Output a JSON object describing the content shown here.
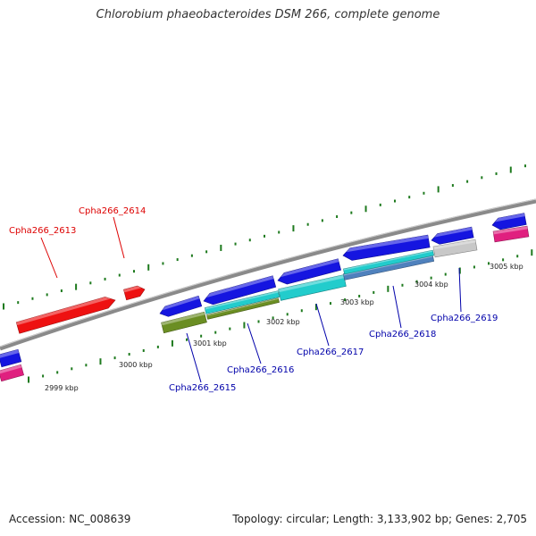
{
  "title": "Chlorobium phaeobacteroides DSM 266, complete genome",
  "footer": {
    "accession": "Accession: NC_008639",
    "info": "Topology: circular; Length: 3,133,902 bp; Genes: 2,705"
  },
  "colors": {
    "backbone": "#8a8a8a",
    "ticks": "#1e7a1e",
    "gene_red": "#ee1111",
    "gene_blue": "#1515e0",
    "cyan": "#22cccc",
    "olive": "#6b8e23",
    "steel": "#4f81bd",
    "gray": "#c8c8c8",
    "magenta": "#e0207f",
    "label_red": "#dd0000",
    "label_blue": "#0000aa"
  },
  "scale_labels": [
    "2999 kbp",
    "3000 kbp",
    "3001 kbp",
    "3002 kbp",
    "3003 kbp",
    "3004 kbp",
    "3005 kbp"
  ],
  "gene_labels": [
    "Cpha266_2613",
    "Cpha266_2614",
    "Cpha266_2615",
    "Cpha266_2616",
    "Cpha266_2617",
    "Cpha266_2618",
    "Cpha266_2619"
  ]
}
